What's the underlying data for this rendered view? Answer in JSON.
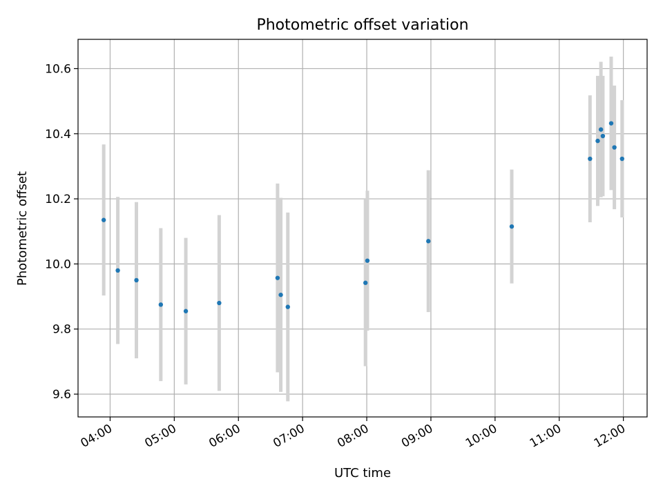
{
  "chart_data": {
    "type": "scatter",
    "title": "Photometric offset variation",
    "xlabel": "UTC time",
    "ylabel": "Photometric offset",
    "x_unit": "hours UTC",
    "xlim": [
      3.5,
      12.37
    ],
    "ylim": [
      9.53,
      10.69
    ],
    "x_ticks": [
      {
        "value": 4,
        "label": "04:00"
      },
      {
        "value": 5,
        "label": "05:00"
      },
      {
        "value": 6,
        "label": "06:00"
      },
      {
        "value": 7,
        "label": "07:00"
      },
      {
        "value": 8,
        "label": "08:00"
      },
      {
        "value": 9,
        "label": "09:00"
      },
      {
        "value": 10,
        "label": "10:00"
      },
      {
        "value": 11,
        "label": "11:00"
      },
      {
        "value": 12,
        "label": "12:00"
      }
    ],
    "y_ticks": [
      {
        "value": 9.6,
        "label": "9.6"
      },
      {
        "value": 9.8,
        "label": "9.8"
      },
      {
        "value": 10.0,
        "label": "10.0"
      },
      {
        "value": 10.2,
        "label": "10.2"
      },
      {
        "value": 10.4,
        "label": "10.4"
      },
      {
        "value": 10.6,
        "label": "10.6"
      }
    ],
    "grid": true,
    "colors": {
      "point": "#1f77b4",
      "errorbar": "#d3d3d3",
      "grid": "#b0b0b0"
    },
    "points": [
      {
        "x": 3.9,
        "y": 10.135,
        "yerr": 0.232
      },
      {
        "x": 4.12,
        "y": 9.98,
        "yerr": 0.226
      },
      {
        "x": 4.41,
        "y": 9.95,
        "yerr": 0.24
      },
      {
        "x": 4.79,
        "y": 9.875,
        "yerr": 0.235
      },
      {
        "x": 5.18,
        "y": 9.855,
        "yerr": 0.225
      },
      {
        "x": 5.7,
        "y": 9.88,
        "yerr": 0.27
      },
      {
        "x": 6.61,
        "y": 9.957,
        "yerr": 0.29
      },
      {
        "x": 6.66,
        "y": 9.905,
        "yerr": 0.298
      },
      {
        "x": 6.77,
        "y": 9.868,
        "yerr": 0.29
      },
      {
        "x": 7.98,
        "y": 9.942,
        "yerr": 0.256
      },
      {
        "x": 8.01,
        "y": 10.01,
        "yerr": 0.215
      },
      {
        "x": 8.96,
        "y": 10.07,
        "yerr": 0.218
      },
      {
        "x": 10.26,
        "y": 10.115,
        "yerr": 0.175
      },
      {
        "x": 11.48,
        "y": 10.323,
        "yerr": 0.195
      },
      {
        "x": 11.6,
        "y": 10.378,
        "yerr": 0.2
      },
      {
        "x": 11.65,
        "y": 10.413,
        "yerr": 0.208
      },
      {
        "x": 11.68,
        "y": 10.393,
        "yerr": 0.185
      },
      {
        "x": 11.81,
        "y": 10.432,
        "yerr": 0.205
      },
      {
        "x": 11.86,
        "y": 10.358,
        "yerr": 0.19
      },
      {
        "x": 11.98,
        "y": 10.323,
        "yerr": 0.18
      }
    ]
  }
}
